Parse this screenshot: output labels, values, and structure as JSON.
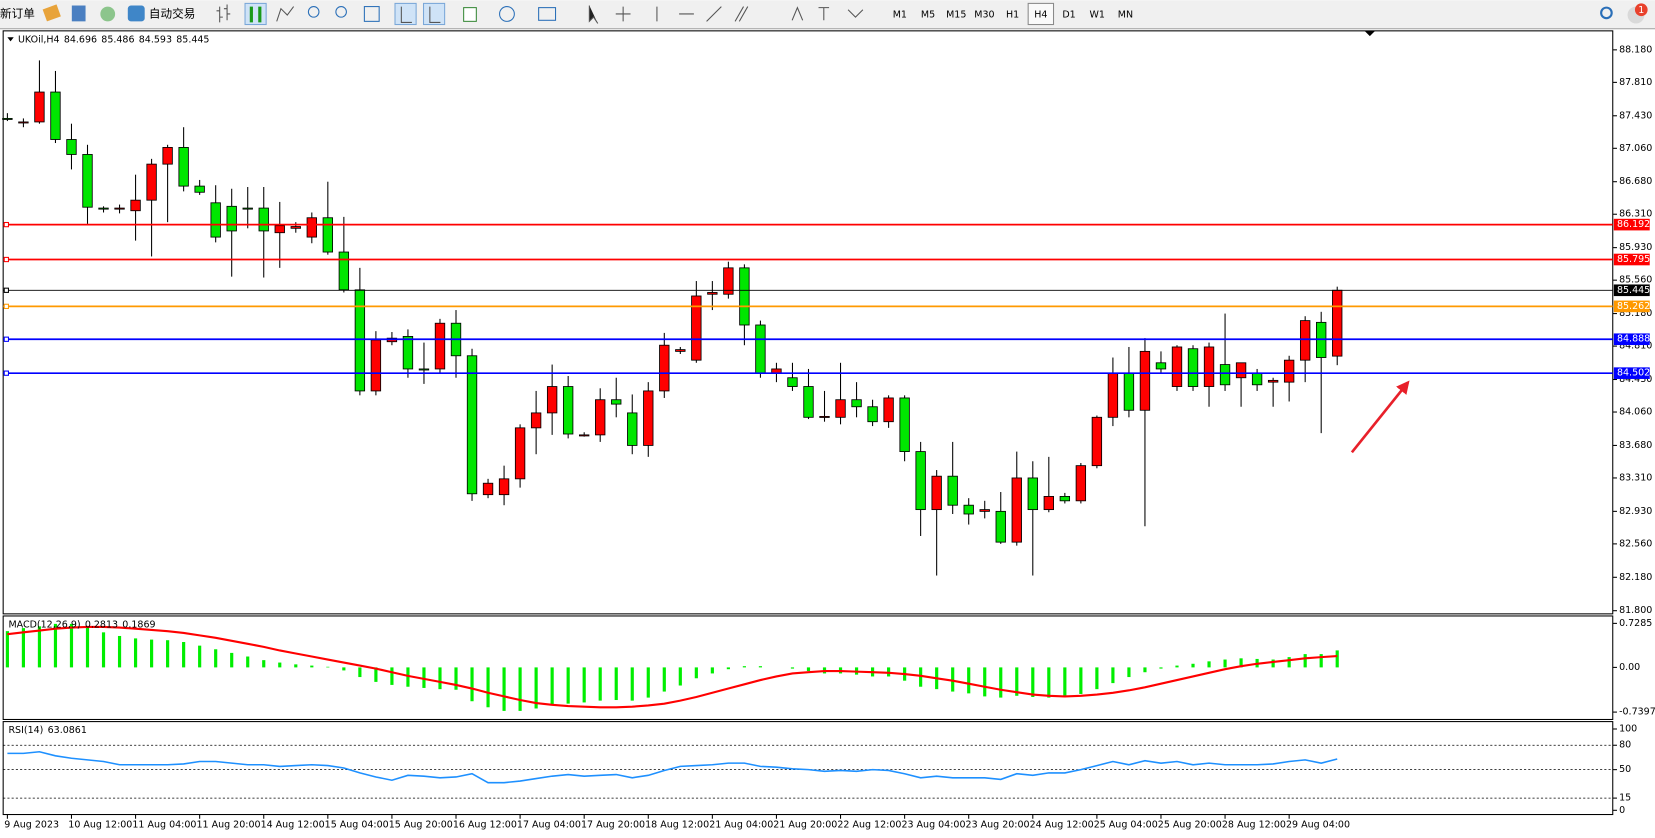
{
  "toolbar": {
    "new_order": "新订单",
    "auto_trading": "自动交易",
    "timeframes": [
      "M1",
      "M5",
      "M15",
      "M30",
      "H1",
      "H4",
      "D1",
      "W1",
      "MN"
    ],
    "active_timeframe": "H4",
    "alerts": 1
  },
  "chart_data": [
    {
      "type": "candlestick",
      "symbol": "UKOil,H4",
      "up_color": "#ff0000",
      "down_color": "#00e600",
      "categories": [
        "9 Aug 2023",
        null,
        null,
        null,
        "10 Aug 12:00",
        null,
        null,
        null,
        "11 Aug 04:00",
        null,
        null,
        null,
        "11 Aug 20:00",
        null,
        null,
        null,
        "14 Aug 12:00",
        null,
        null,
        null,
        "15 Aug 04:00",
        null,
        null,
        null,
        "15 Aug 20:00",
        null,
        null,
        null,
        "16 Aug 12:00",
        null,
        null,
        null,
        "17 Aug 04:00",
        null,
        null,
        null,
        "17 Aug 20:00",
        null,
        null,
        null,
        "18 Aug 12:00",
        null,
        null,
        null,
        "21 Aug 04:00",
        null,
        null,
        null,
        "21 Aug 20:00",
        null,
        null,
        null,
        "22 Aug 12:00",
        null,
        null,
        null,
        "23 Aug 04:00",
        null,
        null,
        null,
        "23 Aug 20:00",
        null,
        null,
        null,
        "24 Aug 12:00",
        null,
        null,
        null,
        "25 Aug 04:00",
        null,
        null,
        null,
        "25 Aug 20:00",
        null,
        null,
        null,
        "28 Aug 12:00",
        null,
        null,
        null,
        "29 Aug 04:00",
        null,
        null,
        null
      ],
      "open": [
        87.4,
        87.36,
        87.36,
        87.7,
        87.16,
        86.99,
        86.38,
        86.37,
        86.35,
        86.47,
        86.88,
        87.07,
        86.63,
        86.44,
        86.4,
        86.38,
        86.38,
        86.1,
        86.15,
        86.05,
        86.27,
        85.88,
        85.45,
        84.3,
        84.86,
        84.92,
        84.55,
        84.55,
        85.07,
        84.7,
        83.12,
        83.12,
        83.3,
        83.88,
        84.05,
        84.35,
        83.8,
        83.8,
        84.2,
        84.05,
        83.68,
        84.3,
        84.75,
        84.65,
        85.4,
        85.4,
        85.7,
        85.05,
        84.5,
        84.45,
        84.35,
        84.0,
        84.0,
        84.2,
        84.12,
        83.95,
        84.22,
        83.61,
        82.95,
        83.33,
        83.0,
        82.93,
        82.93,
        82.58,
        83.31,
        82.95,
        83.1,
        83.05,
        83.45,
        84.0,
        84.5,
        84.08,
        84.62,
        84.35,
        84.78,
        84.35,
        84.6,
        84.45,
        84.5,
        84.4,
        84.4,
        84.65,
        85.08,
        84.696
      ],
      "high": [
        87.46,
        87.4,
        88.06,
        87.94,
        87.34,
        87.1,
        86.4,
        86.42,
        86.76,
        86.94,
        87.1,
        87.3,
        86.7,
        86.64,
        86.6,
        86.62,
        86.62,
        86.45,
        86.22,
        86.33,
        86.68,
        86.28,
        85.7,
        84.98,
        84.97,
        85.0,
        84.85,
        85.12,
        85.22,
        84.78,
        83.3,
        83.45,
        83.92,
        84.3,
        84.6,
        84.47,
        83.83,
        84.33,
        84.45,
        84.26,
        84.4,
        84.96,
        84.8,
        85.55,
        85.55,
        85.77,
        85.74,
        85.1,
        84.62,
        84.62,
        84.55,
        84.3,
        84.62,
        84.4,
        84.2,
        84.25,
        84.25,
        83.72,
        83.4,
        83.72,
        83.08,
        83.05,
        83.15,
        83.61,
        83.5,
        83.55,
        83.14,
        83.48,
        84.02,
        84.68,
        84.8,
        84.9,
        84.75,
        84.82,
        84.82,
        84.85,
        85.18,
        84.62,
        84.55,
        84.45,
        84.7,
        85.15,
        85.2,
        85.486
      ],
      "low": [
        87.37,
        87.3,
        87.34,
        87.12,
        86.82,
        86.2,
        86.33,
        86.32,
        86.01,
        85.83,
        86.22,
        86.57,
        86.53,
        85.99,
        85.6,
        86.15,
        85.59,
        85.7,
        86.1,
        85.98,
        85.85,
        85.42,
        84.25,
        84.25,
        84.82,
        84.45,
        84.38,
        84.5,
        84.45,
        83.05,
        83.08,
        83.0,
        83.2,
        83.58,
        83.8,
        83.76,
        83.78,
        83.72,
        84.0,
        83.58,
        83.55,
        84.22,
        84.72,
        84.62,
        85.22,
        85.35,
        84.82,
        84.45,
        84.4,
        84.3,
        83.98,
        83.95,
        83.92,
        84.0,
        83.9,
        83.88,
        83.5,
        82.65,
        82.2,
        82.9,
        82.78,
        82.85,
        82.56,
        82.54,
        82.2,
        82.92,
        83.02,
        83.02,
        83.42,
        83.9,
        84.0,
        82.76,
        84.5,
        84.3,
        84.3,
        84.12,
        84.3,
        84.12,
        84.3,
        84.12,
        84.18,
        84.4,
        83.82,
        84.593
      ],
      "close": [
        87.39,
        87.36,
        87.7,
        87.16,
        86.99,
        86.39,
        86.37,
        86.38,
        86.47,
        86.88,
        87.07,
        86.63,
        86.56,
        86.05,
        86.12,
        86.37,
        86.12,
        86.18,
        86.17,
        86.27,
        85.88,
        85.45,
        84.3,
        84.88,
        84.9,
        84.55,
        84.54,
        85.07,
        84.7,
        83.13,
        83.25,
        83.3,
        83.88,
        84.05,
        84.35,
        83.81,
        83.8,
        84.2,
        84.15,
        83.68,
        84.3,
        84.82,
        84.77,
        85.38,
        85.42,
        85.7,
        85.05,
        84.5,
        84.55,
        84.35,
        84.0,
        84.01,
        84.2,
        84.12,
        83.95,
        84.22,
        83.61,
        82.95,
        83.33,
        83.0,
        82.9,
        82.95,
        82.58,
        83.31,
        82.95,
        83.1,
        83.05,
        83.45,
        84.0,
        84.5,
        84.08,
        84.75,
        84.55,
        84.8,
        84.35,
        84.8,
        84.37,
        84.62,
        84.37,
        84.42,
        84.65,
        85.1,
        84.68,
        85.445
      ],
      "ylim": [
        81.764,
        88.396
      ],
      "yticks": [
        {
          "value": 88.18,
          "label": "88.180"
        },
        {
          "value": 87.81,
          "label": "87.810"
        },
        {
          "value": 87.43,
          "label": "87.430"
        },
        {
          "value": 87.06,
          "label": "87.060"
        },
        {
          "value": 86.68,
          "label": "86.680"
        },
        {
          "value": 86.31,
          "label": "86.310"
        },
        {
          "value": 85.93,
          "label": "85.930"
        },
        {
          "value": 85.56,
          "label": "85.560"
        },
        {
          "value": 85.18,
          "label": "85.180"
        },
        {
          "value": 84.81,
          "label": "84.810"
        },
        {
          "value": 84.43,
          "label": "84.430"
        },
        {
          "value": 84.06,
          "label": "84.060"
        },
        {
          "value": 83.68,
          "label": "83.680"
        },
        {
          "value": 83.31,
          "label": "83.310"
        },
        {
          "value": 82.93,
          "label": "82.930"
        },
        {
          "value": 82.56,
          "label": "82.560"
        },
        {
          "value": 82.18,
          "label": "82.180"
        },
        {
          "value": 81.8,
          "label": "81.800"
        }
      ],
      "hlines": [
        {
          "value": 86.192,
          "color": "#ff0000"
        },
        {
          "value": 85.795,
          "color": "#ff0000"
        },
        {
          "value": 85.445,
          "color": "#000000"
        },
        {
          "value": 85.262,
          "color": "#ff9900"
        },
        {
          "value": 84.888,
          "color": "#0000ff"
        },
        {
          "value": 84.502,
          "color": "#0000ff"
        }
      ]
    },
    {
      "type": "macd",
      "title": "MACD(12,26,9)",
      "color": "#00ee00",
      "values": [
        0.6,
        0.65,
        0.68,
        0.72,
        0.72,
        0.66,
        0.58,
        0.52,
        0.48,
        0.46,
        0.45,
        0.42,
        0.36,
        0.3,
        0.24,
        0.18,
        0.12,
        0.08,
        0.05,
        0.03,
        0.01,
        -0.05,
        -0.16,
        -0.24,
        -0.29,
        -0.32,
        -0.34,
        -0.36,
        -0.37,
        -0.56,
        -0.66,
        -0.72,
        -0.72,
        -0.68,
        -0.62,
        -0.6,
        -0.58,
        -0.55,
        -0.54,
        -0.55,
        -0.5,
        -0.4,
        -0.3,
        -0.18,
        -0.1,
        -0.03,
        0.02,
        0.02,
        0.0,
        -0.02,
        -0.06,
        -0.1,
        -0.1,
        -0.12,
        -0.15,
        -0.15,
        -0.22,
        -0.32,
        -0.36,
        -0.4,
        -0.43,
        -0.48,
        -0.5,
        -0.47,
        -0.49,
        -0.5,
        -0.48,
        -0.44,
        -0.36,
        -0.26,
        -0.16,
        -0.08,
        -0.02,
        0.03,
        0.06,
        0.1,
        0.13,
        0.15,
        0.14,
        0.13,
        0.17,
        0.22,
        0.22,
        0.2813
      ],
      "signal": {
        "color": "#ff0000",
        "values": [
          0.55,
          0.58,
          0.61,
          0.64,
          0.66,
          0.67,
          0.67,
          0.66,
          0.64,
          0.62,
          0.6,
          0.57,
          0.53,
          0.49,
          0.44,
          0.39,
          0.34,
          0.28,
          0.23,
          0.18,
          0.13,
          0.08,
          0.03,
          -0.02,
          -0.08,
          -0.14,
          -0.19,
          -0.24,
          -0.29,
          -0.35,
          -0.42,
          -0.48,
          -0.54,
          -0.59,
          -0.62,
          -0.64,
          -0.65,
          -0.66,
          -0.66,
          -0.65,
          -0.63,
          -0.6,
          -0.55,
          -0.49,
          -0.42,
          -0.35,
          -0.28,
          -0.21,
          -0.15,
          -0.1,
          -0.08,
          -0.06,
          -0.06,
          -0.07,
          -0.08,
          -0.09,
          -0.11,
          -0.14,
          -0.18,
          -0.22,
          -0.27,
          -0.32,
          -0.37,
          -0.41,
          -0.45,
          -0.47,
          -0.48,
          -0.47,
          -0.45,
          -0.42,
          -0.38,
          -0.33,
          -0.27,
          -0.21,
          -0.15,
          -0.09,
          -0.03,
          0.02,
          0.06,
          0.09,
          0.12,
          0.15,
          0.17,
          0.1869
        ]
      },
      "ylim": [
        -0.862,
        0.851
      ],
      "yticks": [
        0.7285,
        {
          "value": 0,
          "label": "0.00"
        },
        -0.7397
      ]
    },
    {
      "type": "rsi",
      "title": "RSI(14)",
      "color": "#1e90ff",
      "values": [
        70,
        70,
        72,
        67,
        64,
        62,
        60,
        56,
        56,
        56,
        56,
        57,
        60,
        60,
        58,
        56,
        56,
        54,
        55,
        56,
        55,
        52,
        46,
        41,
        37,
        43,
        42,
        40,
        41,
        45,
        34,
        34,
        36,
        39,
        42,
        44,
        42,
        43,
        44,
        40,
        43,
        49,
        54,
        55,
        56,
        58,
        58,
        54,
        53,
        51,
        50,
        48,
        49,
        48,
        50,
        49,
        45,
        40,
        42,
        40,
        40,
        40,
        38,
        45,
        43,
        46,
        46,
        50,
        55,
        60,
        56,
        61,
        58,
        60,
        56,
        58,
        56,
        56,
        56,
        57,
        60,
        62,
        58,
        63.0861
      ],
      "ylim": [
        -5.2,
        109.1
      ],
      "yticks": [
        100,
        80,
        50,
        15,
        0
      ],
      "levels": [
        80,
        50,
        15
      ]
    }
  ]
}
